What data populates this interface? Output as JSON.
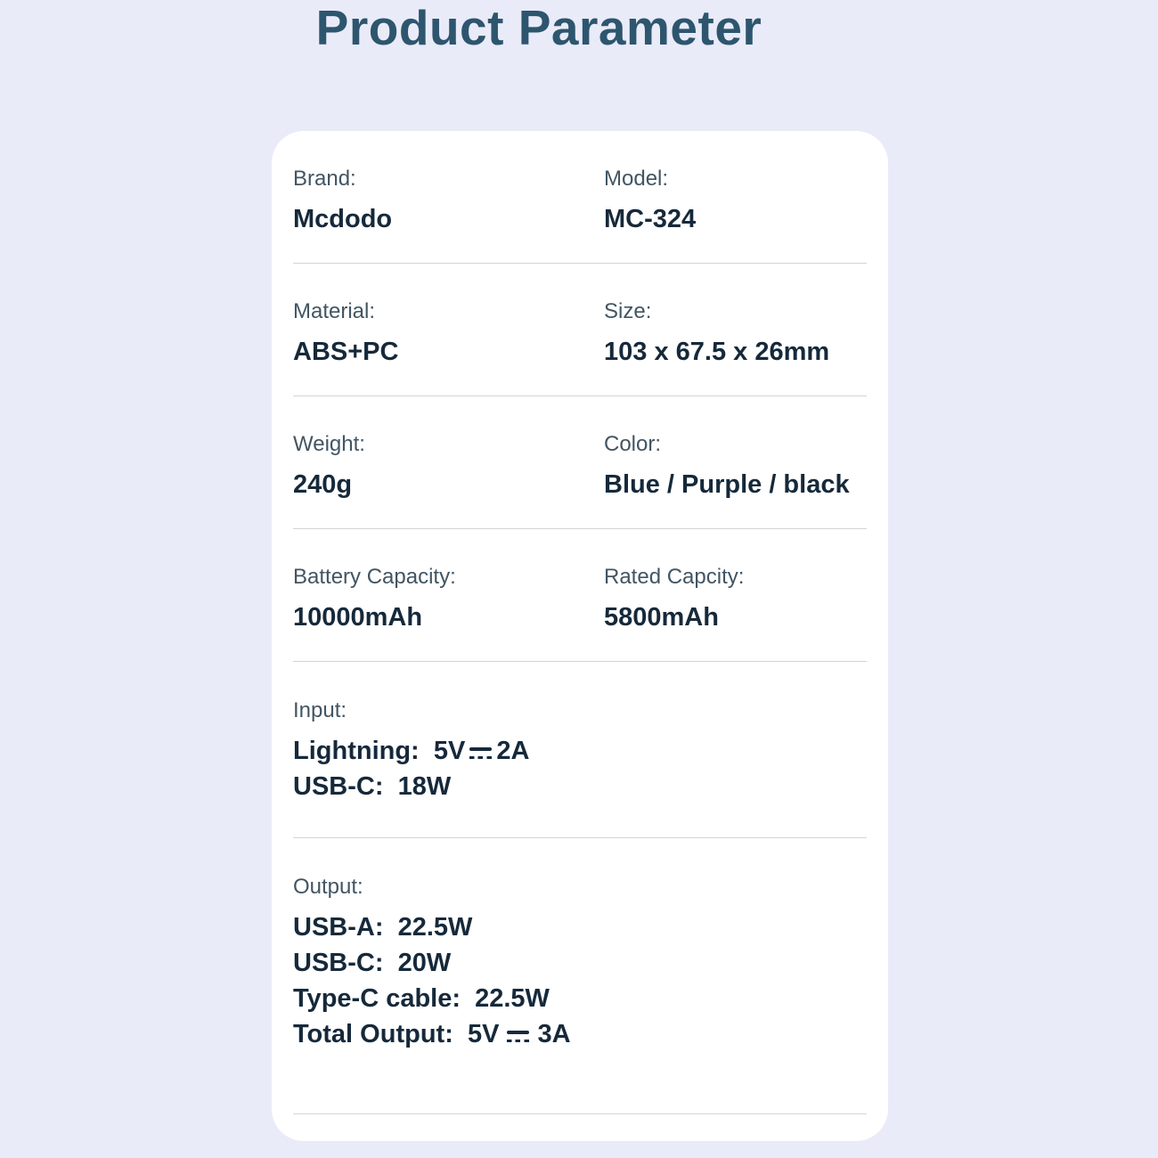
{
  "page": {
    "title": "Product Parameter"
  },
  "colors": {
    "background": "#eaebf8",
    "card": "#ffffff",
    "title": "#2d566e",
    "label": "#425563",
    "value": "#16293b",
    "divider": "#d4d4d8"
  },
  "icons": {
    "dc_symbol": "⎓"
  },
  "card": {
    "rows": [
      {
        "left": {
          "label": "Brand:",
          "value": "Mcdodo"
        },
        "right": {
          "label": "Model:",
          "value": "MC-324"
        }
      },
      {
        "left": {
          "label": "Material:",
          "value": "ABS+PC"
        },
        "right": {
          "label": "Size:",
          "value": "103 x 67.5 x 26mm"
        }
      },
      {
        "left": {
          "label": "Weight:",
          "value": "240g"
        },
        "right": {
          "label": "Color:",
          "value": "Blue / Purple / black"
        }
      },
      {
        "left": {
          "label": "Battery Capacity:",
          "value": "10000mAh"
        },
        "right": {
          "label": "Rated Capcity:",
          "value": "5800mAh"
        }
      }
    ],
    "input": {
      "label": "Input:",
      "line1_pre": "Lightning:  5V",
      "line1_post": "2A",
      "line2": "USB-C:  18W"
    },
    "output": {
      "label": "Output:",
      "line1": "USB-A:  22.5W",
      "line2": "USB-C:  20W",
      "line3": "Type-C cable:  22.5W",
      "line4_pre": "Total Output:  5V",
      "line4_post": "3A"
    }
  }
}
